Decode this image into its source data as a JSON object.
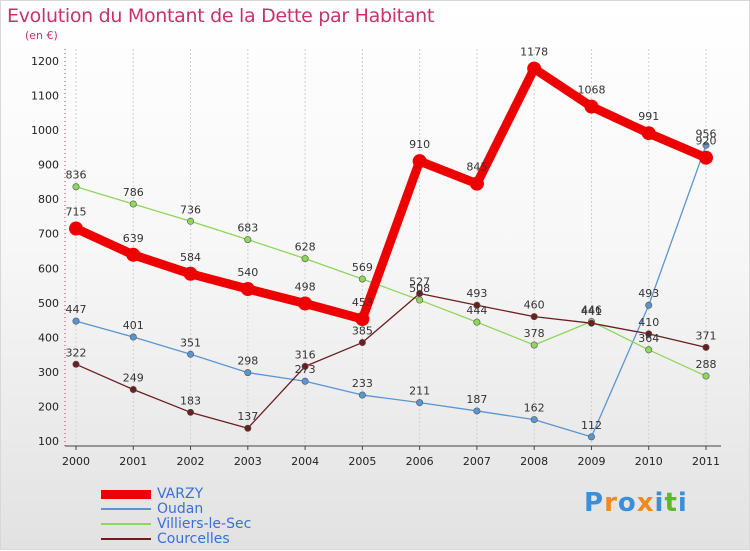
{
  "title": "Evolution du Montant de la Dette par Habitant",
  "subtitle": "(en €)",
  "brand": {
    "text": "Proxiti",
    "letter_colors": [
      "#3a8fd8",
      "#f08a1c",
      "#3a8fd8",
      "#f08a1c",
      "#3a8fd8",
      "#5cb82e",
      "#3a8fd8"
    ]
  },
  "chart_data": {
    "type": "line",
    "title": "Evolution du Montant de la Dette par Habitant",
    "ylabel": "(en €)",
    "xlabel": "",
    "x": [
      "2000",
      "2001",
      "2002",
      "2003",
      "2004",
      "2005",
      "2006",
      "2007",
      "2008",
      "2009",
      "2010",
      "2011"
    ],
    "ylim": [
      100,
      1200
    ],
    "yticks": [
      "100",
      "200",
      "300",
      "400",
      "500",
      "600",
      "700",
      "800",
      "900",
      "1000",
      "1100",
      "1200"
    ],
    "legend_position": "bottom-left",
    "series": [
      {
        "name": "VARZY",
        "color": "#ee0000",
        "emphasis": true,
        "values": [
          715,
          639,
          584,
          540,
          498,
          453,
          910,
          845,
          1178,
          1068,
          991,
          920
        ]
      },
      {
        "name": "Oudan",
        "color": "#5b95d0",
        "emphasis": false,
        "values": [
          447,
          401,
          351,
          298,
          273,
          233,
          211,
          187,
          162,
          112,
          493,
          956
        ]
      },
      {
        "name": "Villiers-le-Sec",
        "color": "#8fd65c",
        "emphasis": false,
        "values": [
          836,
          786,
          736,
          683,
          628,
          569,
          508,
          444,
          378,
          446,
          364,
          288
        ]
      },
      {
        "name": "Courcelles",
        "color": "#6b1f1f",
        "emphasis": false,
        "values": [
          322,
          249,
          183,
          137,
          316,
          385,
          527,
          493,
          460,
          441,
          410,
          371
        ]
      }
    ]
  }
}
